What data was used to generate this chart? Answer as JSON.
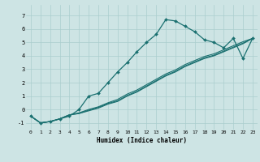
{
  "xlabel": "Humidex (Indice chaleur)",
  "bg_color": "#cde4e4",
  "grid_color": "#aacece",
  "line_color": "#1a7070",
  "xlim": [
    -0.5,
    23.5
  ],
  "ylim": [
    -1.5,
    7.8
  ],
  "yticks": [
    -1,
    0,
    1,
    2,
    3,
    4,
    5,
    6,
    7
  ],
  "xticks": [
    0,
    1,
    2,
    3,
    4,
    5,
    6,
    7,
    8,
    9,
    10,
    11,
    12,
    13,
    14,
    15,
    16,
    17,
    18,
    19,
    20,
    21,
    22,
    23
  ],
  "curve_x": [
    0,
    1,
    2,
    3,
    4,
    5,
    6,
    7,
    8,
    9,
    10,
    11,
    12,
    13,
    14,
    15,
    16,
    17,
    18,
    19,
    20,
    21,
    22,
    23
  ],
  "curve_y": [
    -0.5,
    -1.0,
    -0.9,
    -0.7,
    -0.5,
    0.0,
    1.0,
    1.2,
    2.0,
    2.8,
    3.5,
    4.3,
    5.0,
    5.6,
    6.7,
    6.6,
    6.2,
    5.8,
    5.2,
    5.0,
    4.6,
    5.3,
    3.8,
    5.3
  ],
  "line2_x": [
    0,
    1,
    2,
    3,
    4,
    5,
    6,
    7,
    8,
    9,
    10,
    11,
    12,
    13,
    14,
    15,
    16,
    17,
    18,
    19,
    20,
    21,
    22,
    23
  ],
  "line2_y": [
    -0.5,
    -1.0,
    -0.9,
    -0.7,
    -0.4,
    -0.3,
    -0.1,
    0.1,
    0.4,
    0.6,
    1.0,
    1.3,
    1.7,
    2.1,
    2.5,
    2.8,
    3.2,
    3.5,
    3.8,
    4.0,
    4.3,
    4.6,
    4.9,
    5.3
  ],
  "line3_x": [
    0,
    1,
    2,
    3,
    4,
    5,
    6,
    7,
    8,
    9,
    10,
    11,
    12,
    13,
    14,
    15,
    16,
    17,
    18,
    19,
    20,
    21,
    22,
    23
  ],
  "line3_y": [
    -0.5,
    -1.0,
    -0.9,
    -0.7,
    -0.4,
    -0.3,
    -0.05,
    0.15,
    0.45,
    0.65,
    1.05,
    1.35,
    1.75,
    2.15,
    2.55,
    2.85,
    3.25,
    3.55,
    3.85,
    4.05,
    4.35,
    4.65,
    4.95,
    5.3
  ],
  "line4_x": [
    0,
    1,
    2,
    3,
    4,
    5,
    6,
    7,
    8,
    9,
    10,
    11,
    12,
    13,
    14,
    15,
    16,
    17,
    18,
    19,
    20,
    21,
    22,
    23
  ],
  "line4_y": [
    -0.5,
    -1.0,
    -0.9,
    -0.7,
    -0.4,
    -0.25,
    0.0,
    0.2,
    0.5,
    0.75,
    1.15,
    1.45,
    1.85,
    2.25,
    2.65,
    2.95,
    3.35,
    3.65,
    3.95,
    4.15,
    4.45,
    4.75,
    5.05,
    5.3
  ]
}
